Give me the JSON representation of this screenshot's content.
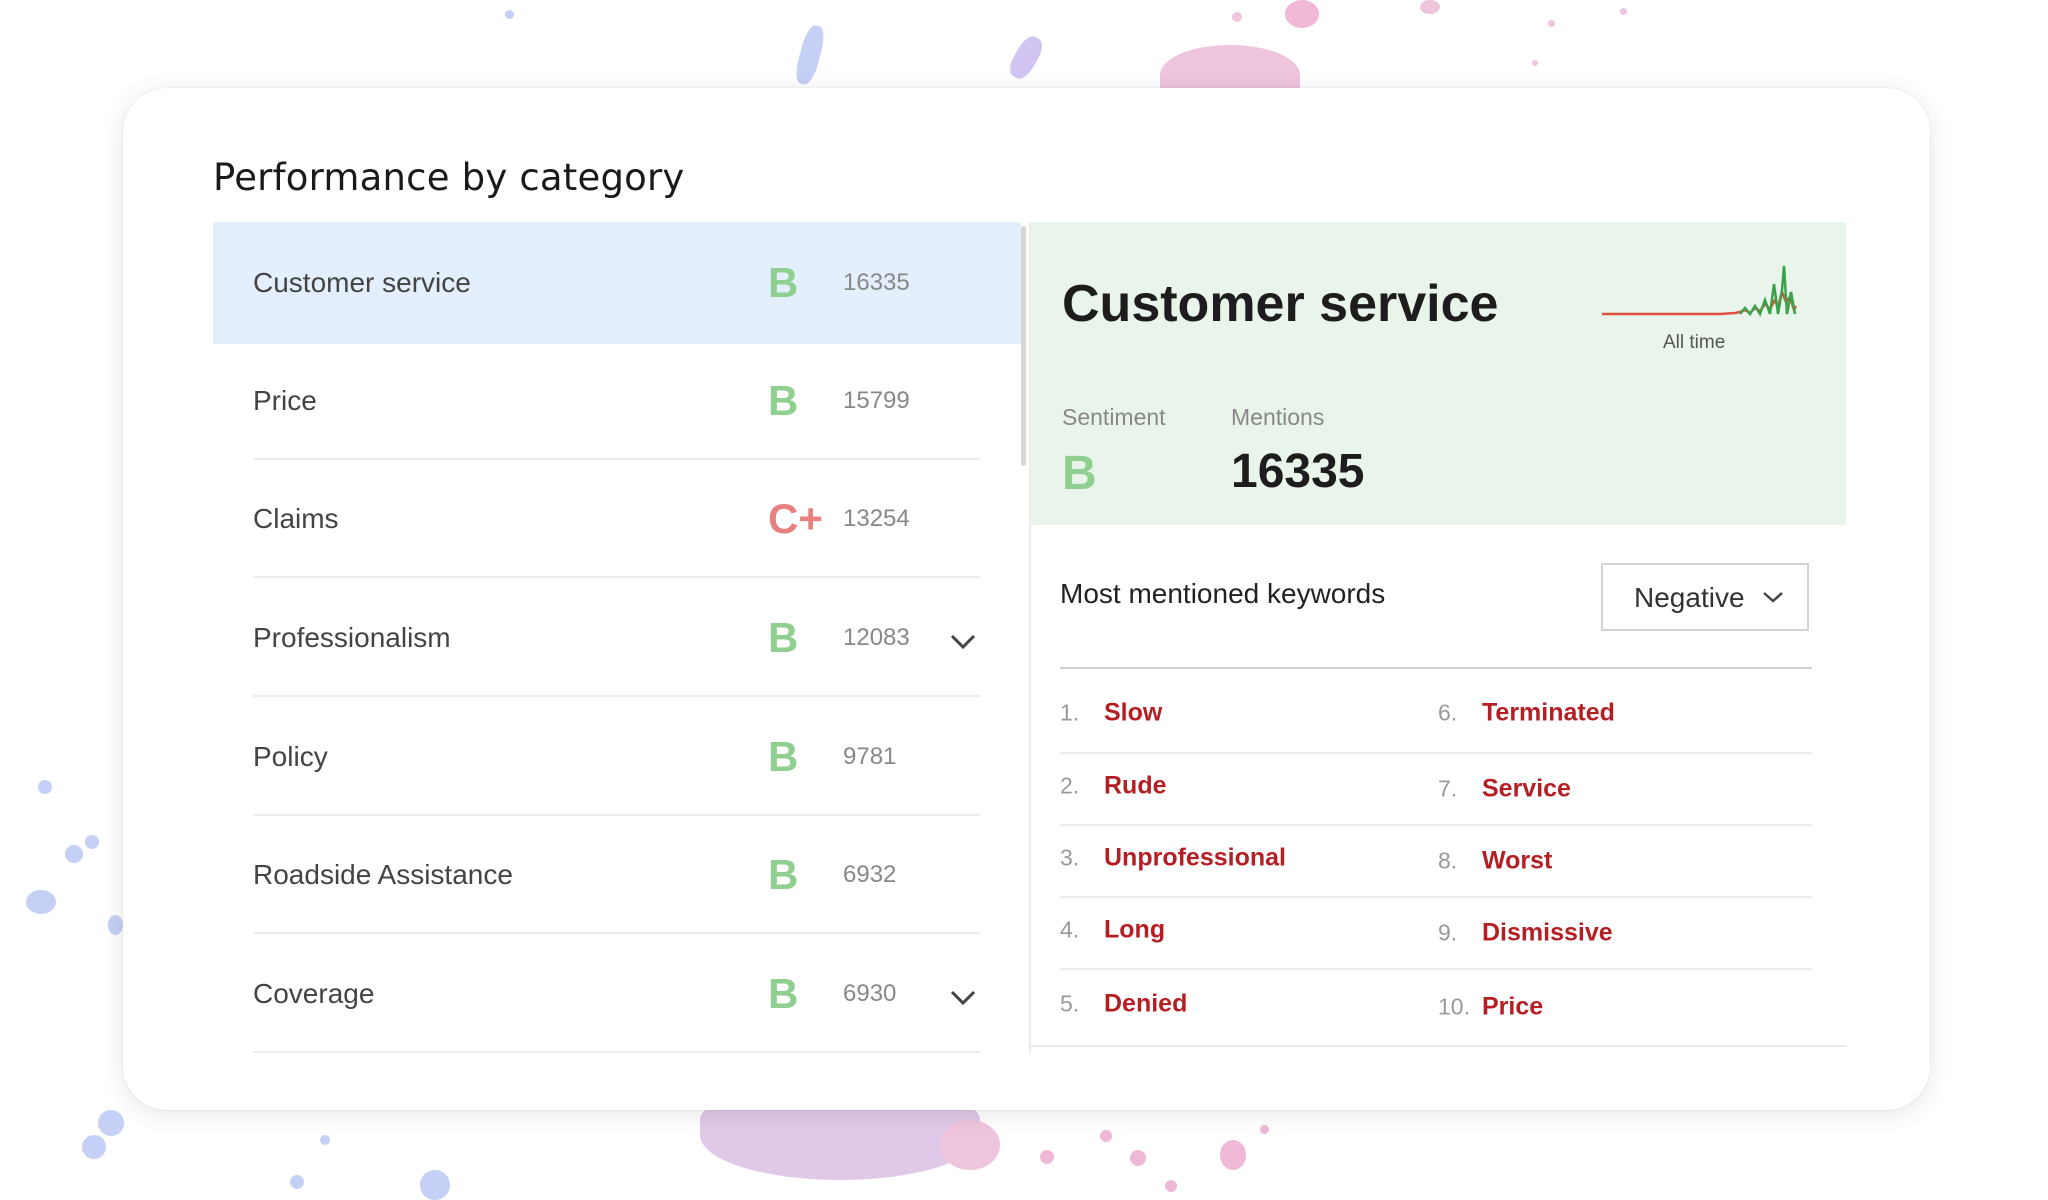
{
  "colors": {
    "selected_row": "#e3effc",
    "grade_b": "#8fcf8f",
    "grade_c_plus": "#e88080",
    "detail_bg": "#e9f5ea",
    "keyword": "#b51f24"
  },
  "page": {
    "title": "Performance by category"
  },
  "categories": [
    {
      "label": "Customer service",
      "grade": "B",
      "count": "16335",
      "grade_color": "#8fcf8f",
      "selected": true,
      "chevron": false
    },
    {
      "label": "Price",
      "grade": "B",
      "count": "15799",
      "grade_color": "#8fcf8f",
      "selected": false,
      "chevron": false
    },
    {
      "label": "Claims",
      "grade": "C+",
      "count": "13254",
      "grade_color": "#e88080",
      "selected": false,
      "chevron": false
    },
    {
      "label": "Professionalism",
      "grade": "B",
      "count": "12083",
      "grade_color": "#8fcf8f",
      "selected": false,
      "chevron": true
    },
    {
      "label": "Policy",
      "grade": "B",
      "count": "9781",
      "grade_color": "#8fcf8f",
      "selected": false,
      "chevron": false
    },
    {
      "label": "Roadside Assistance",
      "grade": "B",
      "count": "6932",
      "grade_color": "#8fcf8f",
      "selected": false,
      "chevron": false
    },
    {
      "label": "Coverage",
      "grade": "B",
      "count": "6930",
      "grade_color": "#8fcf8f",
      "selected": false,
      "chevron": true
    }
  ],
  "detail": {
    "title": "Customer service",
    "sparkline_caption": "All time",
    "sentiment_label": "Sentiment",
    "sentiment_value": "B",
    "mentions_label": "Mentions",
    "mentions_value": "16335"
  },
  "keywords": {
    "heading": "Most mentioned keywords",
    "filter_selected": "Negative",
    "items": [
      {
        "rank": "1.",
        "word": "Slow"
      },
      {
        "rank": "2.",
        "word": "Rude"
      },
      {
        "rank": "3.",
        "word": "Unprofessional"
      },
      {
        "rank": "4.",
        "word": "Long"
      },
      {
        "rank": "5.",
        "word": "Denied"
      },
      {
        "rank": "6.",
        "word": "Terminated"
      },
      {
        "rank": "7.",
        "word": "Service"
      },
      {
        "rank": "8.",
        "word": "Worst"
      },
      {
        "rank": "9.",
        "word": "Dismissive"
      },
      {
        "rank": "10.",
        "word": "Price"
      }
    ]
  },
  "icons": {
    "row_expand": "chevron-down-icon",
    "dropdown": "chevron-down-icon",
    "sparkline": "sparkline-chart-icon"
  }
}
